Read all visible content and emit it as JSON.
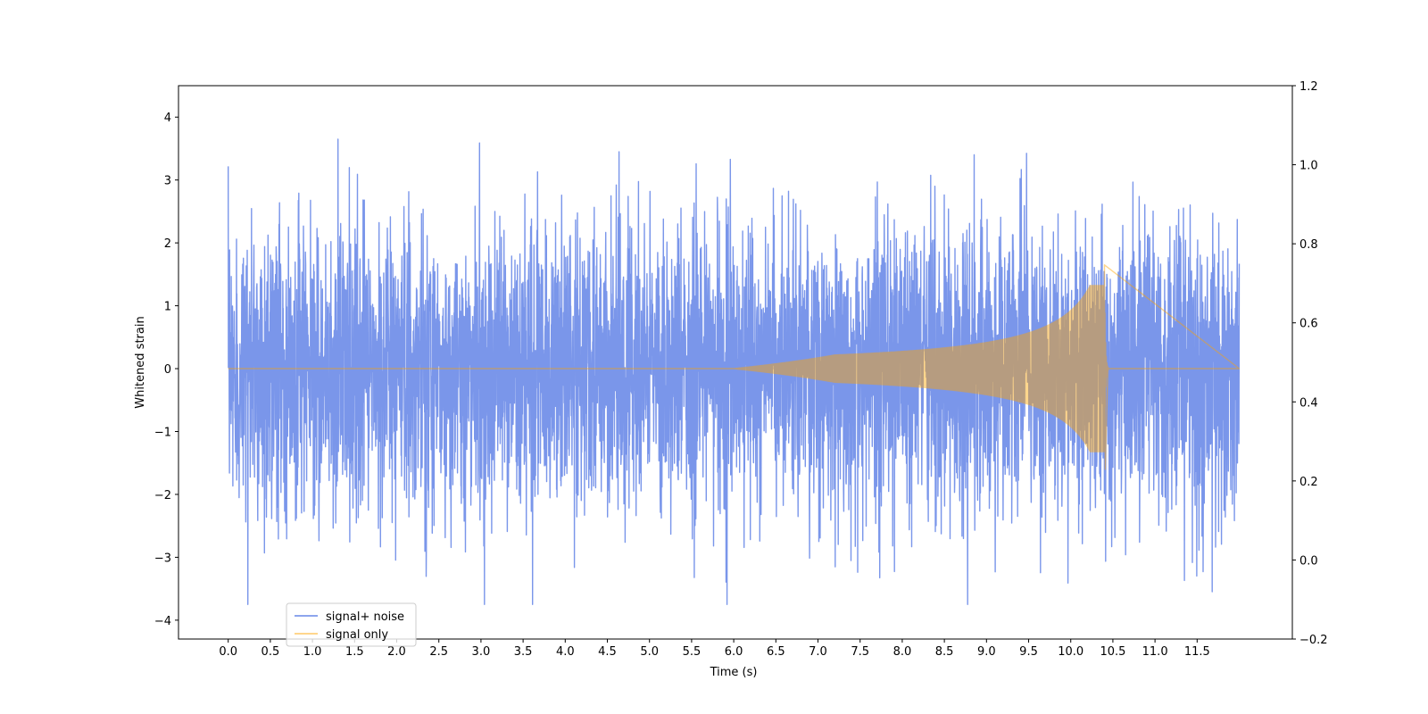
{
  "chart_data": {
    "type": "line",
    "title": "",
    "xlabel": "Time (s)",
    "ylabel": "Whitened strain",
    "xlim": [
      -0.59,
      12.63
    ],
    "ylim": [
      -4.3,
      4.5
    ],
    "y2lim": [
      -0.2,
      1.2
    ],
    "x_tick_labels": [
      "0.0",
      "0.5",
      "1.0",
      "1.5",
      "2.0",
      "2.5",
      "3.0",
      "3.5",
      "4.0",
      "4.5",
      "5.0",
      "5.5",
      "6.0",
      "6.5",
      "7.0",
      "7.5",
      "8.0",
      "8.5",
      "9.0",
      "9.5",
      "10.0",
      "10.5",
      "11.0",
      "11.5"
    ],
    "y_tick_labels": [
      "−4",
      "−3",
      "−2",
      "−1",
      "0",
      "1",
      "2",
      "3",
      "4"
    ],
    "y2_tick_labels": [
      "−0.2",
      "0.0",
      "0.2",
      "0.4",
      "0.6",
      "0.8",
      "1.0",
      "1.2"
    ],
    "grid": false,
    "legend_position": "lower-left",
    "series": [
      {
        "name": "signal+ noise",
        "color": "#4169e1",
        "alpha": 0.7,
        "description_type": "noise",
        "x_range": [
          0.0,
          12.0
        ],
        "typical_amplitude": 1.5,
        "max_value": 4.1,
        "min_value": -3.75
      },
      {
        "name": "signal only",
        "color": "#ffa500",
        "alpha": 0.45,
        "description_type": "chirp",
        "x_range": [
          0.0,
          12.0
        ],
        "onset_time": 6.0,
        "merger_time": 10.4,
        "peak_amplitude": 1.65,
        "trough_amplitude": -1.6
      }
    ]
  }
}
